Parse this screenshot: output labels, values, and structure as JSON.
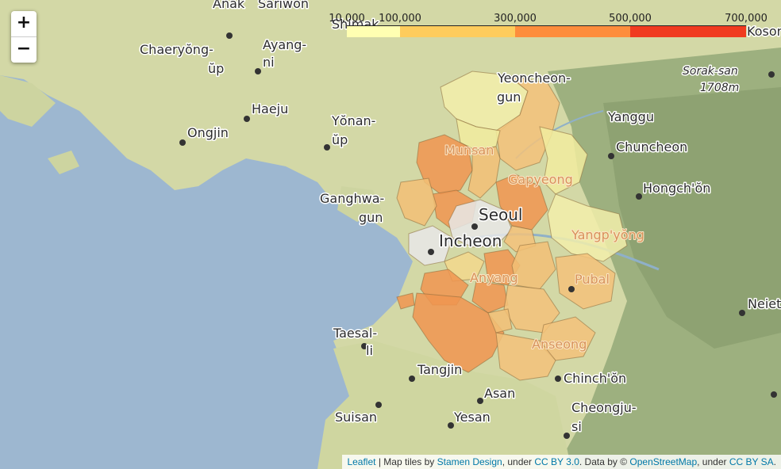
{
  "zoom": {
    "in_label": "+",
    "out_label": "−"
  },
  "legend": {
    "ticks": [
      "10,000",
      "100,000",
      "300,000",
      "500,000",
      "700,000"
    ],
    "colors": [
      "#ffffb2",
      "#fecc5c",
      "#fd8d3c",
      "#f03b20",
      "#bd0026"
    ]
  },
  "places": {
    "anak": "Anak",
    "sariwon": "Sariwon",
    "chaeryong_1": "Chaeryŏng-",
    "chaeryong_2": "ŭp",
    "ayang_1": "Ayang-",
    "ayang_2": "ni",
    "haeju": "Haeju",
    "ongjin": "Ongjin",
    "yonan_1": "Yŏnan-",
    "yonan_2": "ŭp",
    "shimak": "Shimak",
    "ganghwa_1": "Ganghwa-",
    "ganghwa_2": "gun",
    "yeoncheon_1": "Yeoncheon-",
    "yeoncheon_2": "gun",
    "munsan": "Munsan",
    "gapyeong": "Gapyeong",
    "seoul": "Seoul",
    "incheon": "Incheon",
    "yangpyeong": "Yangp'yŏng",
    "pubal": "Pubal",
    "anyang": "Anyang",
    "anseong": "Anseong",
    "chinchon": "Chinch'ŏn",
    "cheongju_1": "Cheongju-",
    "cheongju_2": "si",
    "asan": "Asan",
    "yesan": "Yesan",
    "suisan": "Suisan",
    "tangjin": "Tangjin",
    "taesal_1": "Taesal-",
    "taesal_2": "li",
    "yanggu": "Yanggu",
    "chuncheon": "Chuncheon",
    "hongchon": "Hongch'ŏn",
    "sorak_1": "Sorak-san",
    "sorak_2": "1708m",
    "kosong": "Kosong",
    "neiet": "Neiet"
  },
  "attribution": {
    "leaflet": "Leaflet",
    "sep": " | Map tiles by ",
    "stamen": "Stamen Design",
    "under1": ", under ",
    "ccby": "CC BY 3.0",
    "data": ". Data by © ",
    "osm": "OpenStreetMap",
    "under2": ", under ",
    "ccbysa": "CC BY SA",
    "end": "."
  }
}
